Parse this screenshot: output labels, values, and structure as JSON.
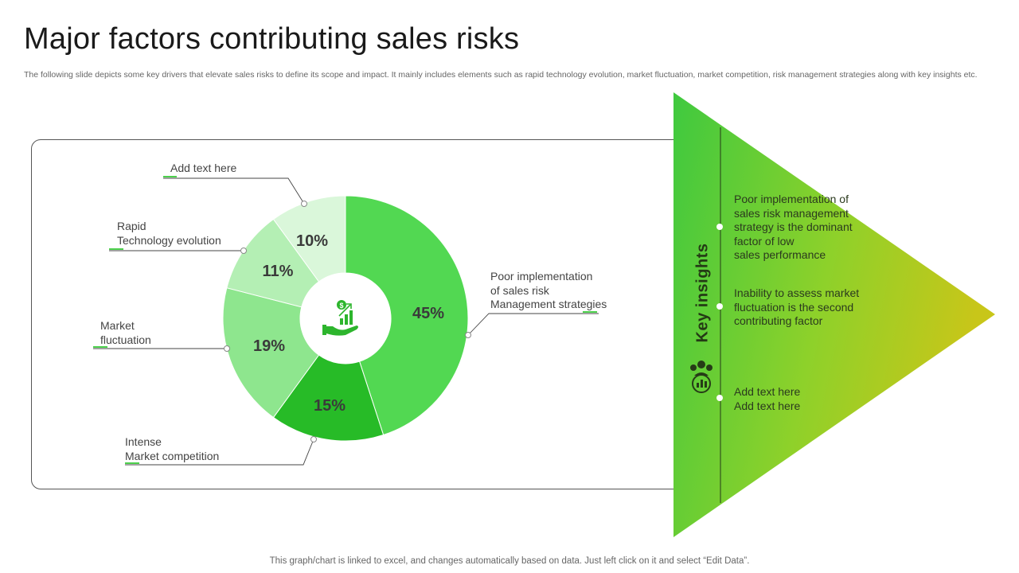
{
  "slide": {
    "title": "Major factors contributing sales risks",
    "subtitle": "The following slide depicts some key drivers that elevate sales risks to define its scope and impact. It mainly includes elements such as rapid technology evolution, market fluctuation, market competition, risk management strategies along with key insights etc.",
    "footer": "This graph/chart is linked to excel, and changes automatically based on data. Just left click on it and select “Edit Data”."
  },
  "chart_data": {
    "type": "pie",
    "donut": true,
    "slices": [
      {
        "label": "Poor implementation of sales risk Management strategies",
        "value": 45,
        "display": "45%",
        "color": "#52d852"
      },
      {
        "label": "Intense Market competition",
        "value": 15,
        "display": "15%",
        "color": "#27bb27"
      },
      {
        "label": "Market fluctuation",
        "value": 19,
        "display": "19%",
        "color": "#8ee68e"
      },
      {
        "label": "Rapid Technology evolution",
        "value": 11,
        "display": "11%",
        "color": "#b4efb4"
      },
      {
        "label": "Add text here",
        "value": 10,
        "display": "10%",
        "color": "#daf7da"
      }
    ]
  },
  "callouts": {
    "poor": [
      "Poor implementation",
      "of sales risk",
      "Management strategies"
    ],
    "intense": [
      "Intense",
      "Market competition"
    ],
    "market": [
      "Market",
      "fluctuation"
    ],
    "rapid": [
      "Rapid",
      "Technology evolution"
    ],
    "addtext": [
      "Add text here"
    ]
  },
  "insights": {
    "heading": "Key insights",
    "items": [
      "Poor implementation of\nsales risk management\nstrategy is the dominant\nfactor of low\nsales performance",
      "Inability to assess market\nfluctuation is the second\ncontributing factor",
      "Add text here\nAdd text here"
    ]
  },
  "icons": {
    "center": "money-growth-hand-icon",
    "insights": "team-chart-icon"
  },
  "colors": {
    "accent": "#4cd04c",
    "triangle_left": "#3fc93f",
    "triangle_right": "#c8c619"
  }
}
